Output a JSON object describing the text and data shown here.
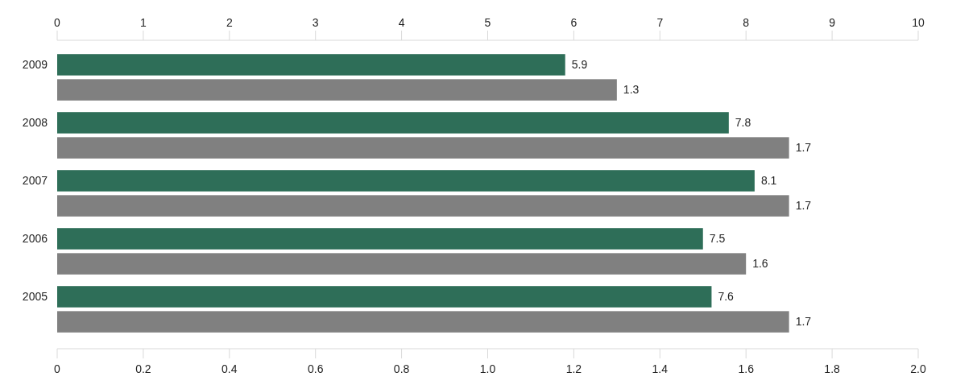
{
  "chart_data": {
    "type": "bar",
    "orientation": "horizontal",
    "categories": [
      "2009",
      "2008",
      "2007",
      "2006",
      "2005"
    ],
    "series": [
      {
        "color": "#2e6e58",
        "values": [
          5.9,
          7.8,
          8.1,
          7.5,
          7.6
        ],
        "axis": "x2"
      },
      {
        "color": "#808080",
        "values": [
          1.3,
          1.7,
          1.7,
          1.6,
          1.7
        ]
      }
    ],
    "data_labels": true,
    "xlim": [
      0,
      2
    ],
    "xticks": [
      0,
      0.2,
      0.4,
      0.6,
      0.8,
      {
        "value": 1,
        "label": "1.0"
      },
      1.2,
      1.4,
      1.6,
      1.8,
      {
        "value": 2,
        "label": "2.0"
      }
    ],
    "x2lim": [
      0,
      10
    ],
    "x2ticks": [
      0,
      1,
      2,
      3,
      4,
      5,
      6,
      7,
      8,
      9,
      10
    ],
    "grid": false
  }
}
